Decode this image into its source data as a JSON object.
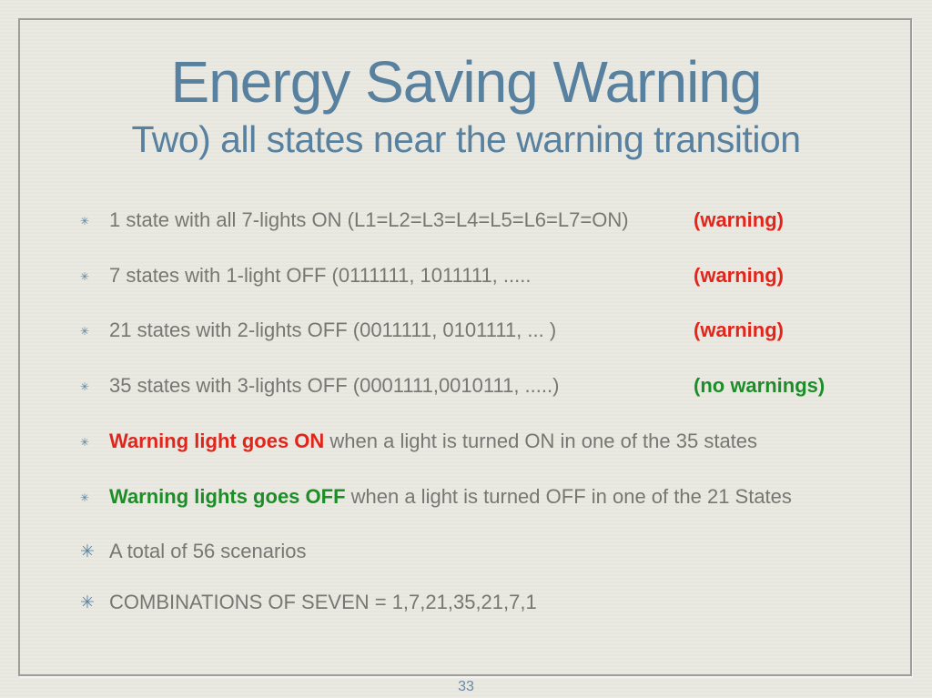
{
  "slide": {
    "title": "Energy Saving Warning",
    "subtitle": "Two) all states near the warning transition",
    "page_number": "33"
  },
  "icons": {
    "bullet_small": "✳",
    "bullet_large": "✳"
  },
  "colors": {
    "background": "#e9e8e1",
    "frame_border": "#9d9d9b",
    "title_blue": "#58809f",
    "body_gray": "#787672",
    "warning_red": "#e1251b",
    "ok_green": "#1d8e27",
    "bullet_blue": "#5b84a3",
    "page_number_blue": "#6b88a5"
  },
  "bullets": [
    {
      "text": "1 state with all 7-lights ON (L1=L2=L3=L4=L5=L6=L7=ON)",
      "status": "(warning)",
      "status_color": "red"
    },
    {
      "text": "7 states with 1-light OFF (0111111, 1011111, .....",
      "status": "(warning)",
      "status_color": "red"
    },
    {
      "text": "21 states with 2-lights OFF (0011111, 0101111, ... )",
      "status": "(warning)",
      "status_color": "red"
    },
    {
      "text": "35 states with 3-lights OFF (0001111,0010111, .....)",
      "status": "(no warnings)",
      "status_color": "green"
    },
    {
      "lead": "Warning light goes ON",
      "lead_color": "red",
      "text": " when a light is turned ON in one of the 35 states"
    },
    {
      "lead": "Warning lights goes OFF",
      "lead_color": "green",
      "text": " when a light is turned OFF in one of the 21 States"
    },
    {
      "text": "A total of 56 scenarios"
    },
    {
      "text": "COMBINATIONS OF SEVEN = 1,7,21,35,21,7,1"
    }
  ]
}
